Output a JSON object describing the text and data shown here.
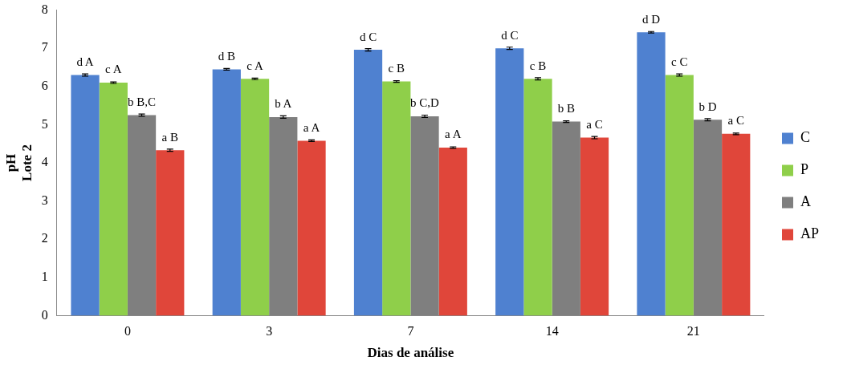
{
  "chart_data": {
    "type": "bar",
    "xlabel": "Dias de análise",
    "ylabel": "pH\nLote 2",
    "categories": [
      "0",
      "3",
      "7",
      "14",
      "21"
    ],
    "series": [
      {
        "name": "C",
        "color": "#4f81d0",
        "values": [
          6.3,
          6.45,
          6.96,
          7.0,
          7.42
        ],
        "errors": [
          0.03,
          0.02,
          0.03,
          0.03,
          0.02
        ]
      },
      {
        "name": "P",
        "color": "#8fcf4a",
        "values": [
          6.1,
          6.2,
          6.13,
          6.2,
          6.3
        ],
        "errors": [
          0.02,
          0.02,
          0.02,
          0.03,
          0.03
        ]
      },
      {
        "name": "A",
        "color": "#7f7f7f",
        "values": [
          5.25,
          5.2,
          5.22,
          5.08,
          5.13
        ],
        "errors": [
          0.03,
          0.03,
          0.03,
          0.02,
          0.03
        ]
      },
      {
        "name": "AP",
        "color": "#e0463a",
        "values": [
          4.33,
          4.58,
          4.4,
          4.66,
          4.76
        ],
        "errors": [
          0.03,
          0.02,
          0.02,
          0.03,
          0.02
        ]
      }
    ],
    "ylim": [
      0,
      8
    ],
    "yticks": [
      0,
      1,
      2,
      3,
      4,
      5,
      6,
      7,
      8
    ],
    "grid": false,
    "legend": "right",
    "annotations": [
      "d A",
      "c A",
      "b B,C",
      "a B",
      "d B",
      "c A",
      "b A",
      "a A",
      "d C",
      "c B",
      "b C,D",
      "a A",
      "d C",
      "c B",
      "b B",
      "a C",
      "d D",
      "c C",
      "b D",
      "a C"
    ]
  }
}
